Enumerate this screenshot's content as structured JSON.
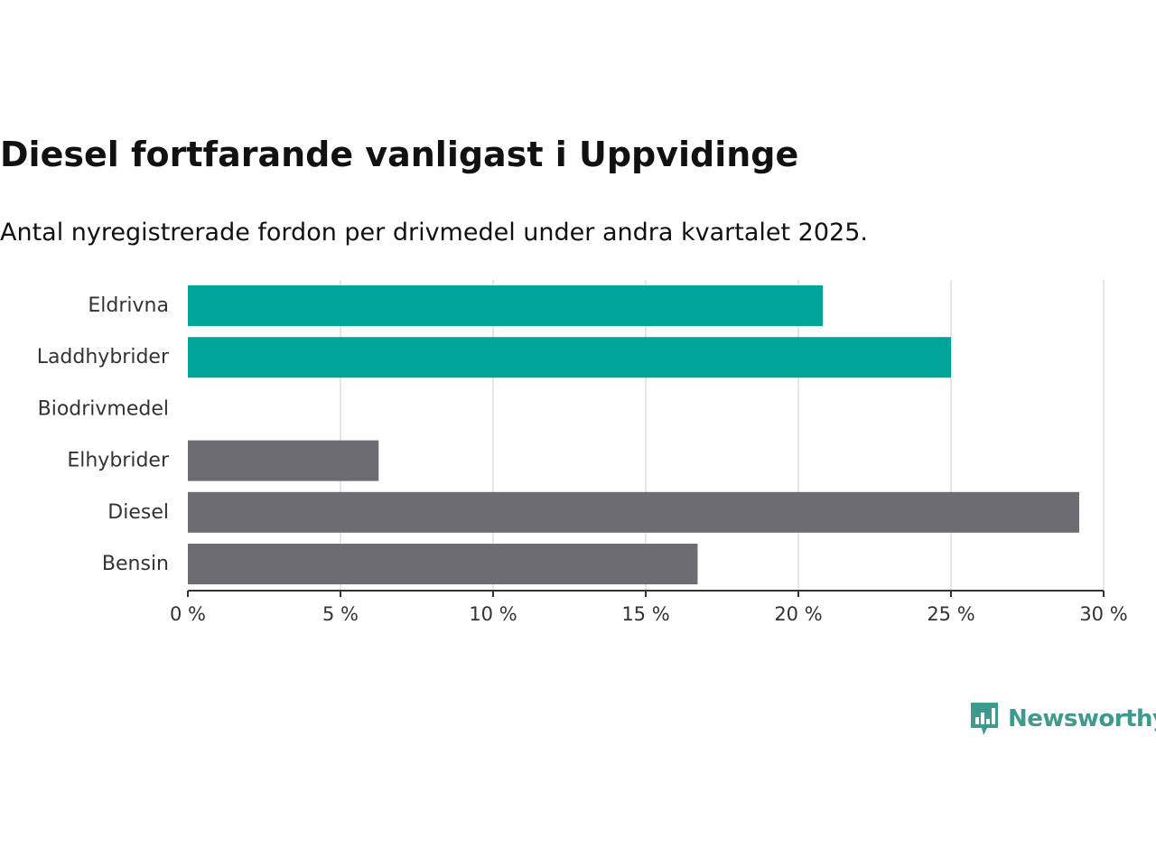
{
  "header": {
    "title": "Diesel fortfarande vanligast i Uppvidinge",
    "subtitle": "Antal nyregistrerade fordon per drivmedel under andra kvartalet 2025."
  },
  "brand": {
    "name": "Newsworthy",
    "color": "#3f9a8e"
  },
  "colors": {
    "highlight": "#00a499",
    "default": "#6d6c73",
    "grid": "#dddddd",
    "axis": "#333333"
  },
  "chart_data": {
    "type": "bar",
    "orientation": "horizontal",
    "categories": [
      "Eldrivna",
      "Laddhybrider",
      "Biodrivmedel",
      "Elhybrider",
      "Diesel",
      "Bensin"
    ],
    "values": [
      20.8,
      25.0,
      0,
      6.25,
      29.2,
      16.7
    ],
    "highlighted": [
      true,
      true,
      true,
      false,
      false,
      false
    ],
    "x_ticks": [
      "0 %",
      "5 %",
      "10 %",
      "15 %",
      "20 %",
      "25 %",
      "30 %"
    ],
    "xlim": [
      0,
      30
    ],
    "grid": true,
    "title": "Diesel fortfarande vanligast i Uppvidinge",
    "xlabel": "",
    "ylabel": ""
  }
}
